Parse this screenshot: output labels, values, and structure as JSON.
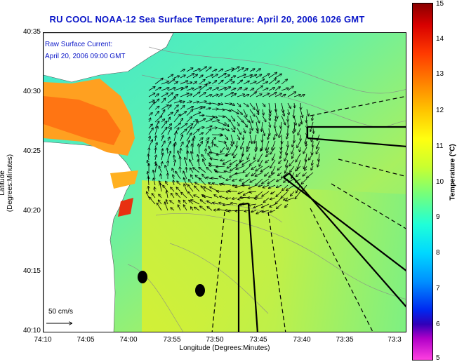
{
  "title": "RU COOL  NOAA-12  Sea Surface Temperature:  April 20, 2006 1026 GMT",
  "overlay": {
    "line1": "Raw Surface Current:",
    "line2": "April 20, 2006 09:00 GMT"
  },
  "axes": {
    "xlabel": "Longitude (Degrees:Minutes)",
    "ylabel": "Latitude (Degrees:Minutes)",
    "xticks": [
      "74:10",
      "74:05",
      "74:00",
      "73:55",
      "73:50",
      "73:45",
      "73:40",
      "73:35",
      "73:3"
    ],
    "yticks": [
      "40:35",
      "40:30",
      "40:25",
      "40:20",
      "40:15",
      "40:10"
    ]
  },
  "scale": {
    "label": "50 cm/s"
  },
  "colorbar": {
    "label": "Temperature (°C)",
    "ticks": [
      "15",
      "14",
      "13",
      "12",
      "11",
      "10",
      "9",
      "8",
      "7",
      "6",
      "5"
    ],
    "min": 5,
    "max": 15
  },
  "colors": {
    "title": "#0a16c8",
    "land": "#ffffff",
    "water_mid": "#60f090",
    "water_warm": "#e8f030",
    "hot": "#e83010"
  }
}
